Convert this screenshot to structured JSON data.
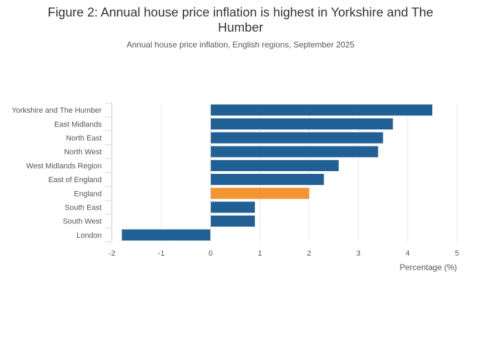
{
  "title_line1": "Figure 2: Annual house price inflation is highest in Yorkshire and The",
  "title_line2": "Humber",
  "subtitle": "Annual house price inflation, English regions, September 2025",
  "chart_data": {
    "type": "bar",
    "orientation": "horizontal",
    "title": "Figure 2: Annual house price inflation is highest in Yorkshire and The Humber",
    "subtitle": "Annual house price inflation, English regions, September 2025",
    "xlabel": "Percentage (%)",
    "ylabel": "",
    "xlim": [
      -2,
      5
    ],
    "xticks": [
      -2,
      -1,
      0,
      1,
      2,
      3,
      4,
      5
    ],
    "grid": true,
    "categories": [
      "Yorkshire and The Humber",
      "East Midlands",
      "North East",
      "North West",
      "West Midlands Region",
      "East of England",
      "England",
      "South East",
      "South West",
      "London"
    ],
    "values": [
      4.5,
      3.7,
      3.5,
      3.4,
      2.6,
      2.3,
      2.0,
      0.9,
      0.9,
      -1.8
    ],
    "colors": [
      "#206095",
      "#206095",
      "#206095",
      "#206095",
      "#206095",
      "#206095",
      "#F39431",
      "#206095",
      "#206095",
      "#206095"
    ]
  }
}
